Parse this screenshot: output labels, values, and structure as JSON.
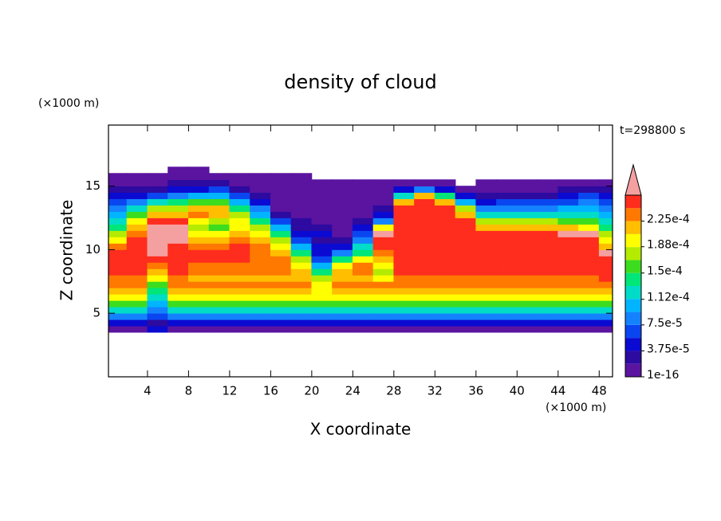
{
  "chart_data": {
    "type": "contour",
    "title": "density of cloud",
    "x_label": "X coordinate",
    "y_label": "Z coordinate",
    "x_unit": "(×1000 m)",
    "y_unit": "(×1000 m)",
    "annotation": "t=298800 s",
    "xlim": [
      0.2,
      49.3
    ],
    "ylim": [
      0,
      19.8
    ],
    "xticks": [
      4,
      8,
      12,
      16,
      20,
      24,
      28,
      32,
      36,
      40,
      44,
      48
    ],
    "yticks": [
      5,
      10,
      15
    ],
    "levels": [
      1e-16,
      1.875e-05,
      3.75e-05,
      5.625e-05,
      7.5e-05,
      9.375e-05,
      0.0001125,
      0.00013125,
      0.00015,
      0.00016875,
      0.0001875,
      0.00020625,
      0.000225,
      0.00024375,
      0.0002625
    ],
    "colors": [
      "#5a14a0",
      "#2d0aa0",
      "#0a0ad2",
      "#0a46f0",
      "#1482ff",
      "#00b4ff",
      "#00dcc8",
      "#00e678",
      "#3cdc1e",
      "#b4eb00",
      "#ffff00",
      "#ffbe00",
      "#ff7800",
      "#ff2d1e"
    ],
    "extend_color": "#f5a0a0",
    "cbar_ticks": [
      {
        "value": 1e-16,
        "label": "1e-16"
      },
      {
        "value": 3.75e-05,
        "label": "3.75e-5"
      },
      {
        "value": 7.5e-05,
        "label": "7.5e-5"
      },
      {
        "value": 0.000112,
        "label": "1.12e-4"
      },
      {
        "value": 0.00015,
        "label": "1.5e-4"
      },
      {
        "value": 0.000188,
        "label": "1.88e-4"
      },
      {
        "value": 0.000225,
        "label": "2.25e-4"
      }
    ],
    "x": [
      1,
      3,
      5,
      7,
      9,
      11,
      13,
      15,
      17,
      19,
      21,
      23,
      25,
      27,
      29,
      31,
      33,
      35,
      37,
      39,
      41,
      43,
      45,
      47,
      49
    ],
    "y": [
      3.75,
      4.25,
      4.75,
      5.25,
      5.75,
      6.25,
      6.75,
      7.25,
      7.75,
      8.25,
      8.75,
      9.25,
      9.75,
      10.25,
      10.75,
      11.25,
      11.75,
      12.25,
      12.75,
      13.25,
      13.75,
      14.25,
      14.75,
      15.25,
      15.75,
      16.25
    ],
    "z": [
      [
        1e-05,
        4.7e-05,
        8.4e-05,
        0.000122,
        0.000159,
        0.000197,
        0.000216,
        0.000234,
        0.000234,
        0.000253,
        0.000253,
        0.000253,
        0.000253,
        0.000234,
        0.000197,
        0.000178,
        0.00014,
        0.000122,
        0.000103,
        8.4e-05,
        6.5e-05,
        4.7e-05,
        2.8e-05,
        1e-05,
        1e-05,
        null
      ],
      [
        1e-05,
        4.7e-05,
        8.4e-05,
        0.000122,
        0.000159,
        0.000197,
        0.000216,
        0.000234,
        0.000234,
        0.000253,
        0.000253,
        0.000253,
        0.000253,
        0.000253,
        0.000253,
        0.000234,
        0.000216,
        0.000197,
        0.000159,
        0.000122,
        8.4e-05,
        4.7e-05,
        2.8e-05,
        1e-05,
        1e-05,
        null
      ],
      [
        4.7e-05,
        2.8e-05,
        6.5e-05,
        8.4e-05,
        0.000103,
        0.000122,
        0.00014,
        0.000159,
        0.000197,
        0.000216,
        0.000234,
        0.000253,
        0.00028,
        0.00028,
        0.00028,
        0.00028,
        0.00028,
        0.000253,
        0.000216,
        0.000178,
        0.000122,
        6.5e-05,
        2.8e-05,
        1e-05,
        1e-05,
        null
      ],
      [
        1e-05,
        4.7e-05,
        8.4e-05,
        0.000122,
        0.000159,
        0.000197,
        0.000216,
        0.000234,
        0.000234,
        0.000253,
        0.000253,
        0.000253,
        0.000253,
        0.000253,
        0.00028,
        0.00028,
        0.00028,
        0.000253,
        0.000216,
        0.000178,
        0.00014,
        8.4e-05,
        4.7e-05,
        2.8e-05,
        1e-05,
        1e-05
      ],
      [
        1e-05,
        4.7e-05,
        8.4e-05,
        0.000122,
        0.000159,
        0.000197,
        0.000216,
        0.000234,
        0.000216,
        0.000234,
        0.000234,
        0.000253,
        0.000253,
        0.000234,
        0.000216,
        0.000197,
        0.000178,
        0.000197,
        0.000234,
        0.000216,
        0.000159,
        0.000103,
        4.7e-05,
        2.8e-05,
        1e-05,
        1e-05
      ],
      [
        1e-05,
        4.7e-05,
        8.4e-05,
        0.000122,
        0.000159,
        0.000197,
        0.000216,
        0.000234,
        0.000216,
        0.000234,
        0.000234,
        0.000253,
        0.000253,
        0.000234,
        0.000216,
        0.000197,
        0.000159,
        0.000178,
        0.000216,
        0.000216,
        0.000159,
        0.000103,
        6.5e-05,
        2.8e-05,
        1e-05,
        null
      ],
      [
        1e-05,
        4.7e-05,
        8.4e-05,
        0.000122,
        0.000159,
        0.000197,
        0.000216,
        0.000234,
        0.000216,
        0.000234,
        0.000234,
        0.000253,
        0.000253,
        0.000253,
        0.000234,
        0.000216,
        0.000197,
        0.000197,
        0.000178,
        0.00014,
        0.000103,
        6.5e-05,
        2.8e-05,
        1e-05,
        1e-05,
        null
      ],
      [
        1e-05,
        4.7e-05,
        8.4e-05,
        0.000122,
        0.000159,
        0.000197,
        0.000216,
        0.000234,
        0.000216,
        0.000234,
        0.000234,
        0.000234,
        0.000234,
        0.000234,
        0.000216,
        0.000197,
        0.000178,
        0.00014,
        0.000103,
        8.4e-05,
        4.7e-05,
        2.8e-05,
        1e-05,
        1e-05,
        1e-05,
        null
      ],
      [
        1e-05,
        4.7e-05,
        8.4e-05,
        0.000122,
        0.000159,
        0.000197,
        0.000216,
        0.000234,
        0.000216,
        0.000234,
        0.000234,
        0.000234,
        0.000216,
        0.000197,
        0.000178,
        0.00014,
        0.000103,
        6.5e-05,
        2.8e-05,
        1e-05,
        1e-05,
        1e-05,
        1e-05,
        1e-05,
        1e-05,
        null
      ],
      [
        1e-05,
        4.7e-05,
        8.4e-05,
        0.000122,
        0.000159,
        0.000197,
        0.000216,
        0.000234,
        0.000216,
        0.000216,
        0.000197,
        0.000178,
        0.00014,
        0.000103,
        6.5e-05,
        4.7e-05,
        2.8e-05,
        2.8e-05,
        1e-05,
        1e-05,
        1e-05,
        1e-05,
        1e-05,
        1e-05,
        1e-05,
        null
      ],
      [
        1e-05,
        4.7e-05,
        8.4e-05,
        0.000122,
        0.000159,
        0.000197,
        0.000197,
        0.000197,
        0.000178,
        0.00014,
        0.000103,
        6.5e-05,
        4.7e-05,
        4.7e-05,
        2.8e-05,
        4.7e-05,
        2.8e-05,
        1e-05,
        1e-05,
        1e-05,
        1e-05,
        1e-05,
        1e-05,
        1e-05,
        null,
        null
      ],
      [
        1e-05,
        4.7e-05,
        8.4e-05,
        0.000122,
        0.000159,
        0.000197,
        0.000216,
        0.000234,
        0.000216,
        0.000216,
        0.000197,
        0.00014,
        8.4e-05,
        4.7e-05,
        2.8e-05,
        1e-05,
        1e-05,
        1e-05,
        1e-05,
        1e-05,
        1e-05,
        1e-05,
        1e-05,
        1e-05,
        null,
        null
      ],
      [
        1e-05,
        4.7e-05,
        8.4e-05,
        0.000122,
        0.000159,
        0.000197,
        0.000216,
        0.000234,
        0.000216,
        0.000234,
        0.000234,
        0.000197,
        0.00014,
        0.000122,
        8.4e-05,
        6.5e-05,
        4.7e-05,
        2.8e-05,
        1e-05,
        1e-05,
        1e-05,
        1e-05,
        1e-05,
        1e-05,
        null,
        null
      ],
      [
        1e-05,
        4.7e-05,
        8.4e-05,
        0.000122,
        0.000159,
        0.000197,
        0.000216,
        0.000234,
        0.000197,
        0.000178,
        0.000197,
        0.000216,
        0.000234,
        0.000253,
        0.000253,
        0.00028,
        0.000197,
        8.4e-05,
        4.7e-05,
        2.8e-05,
        1e-05,
        1e-05,
        1e-05,
        1e-05,
        null,
        null
      ],
      [
        1e-05,
        4.7e-05,
        8.4e-05,
        0.000122,
        0.000159,
        0.000197,
        0.000216,
        0.000234,
        0.000234,
        0.000253,
        0.000253,
        0.000253,
        0.000253,
        0.000253,
        0.000253,
        0.000253,
        0.000253,
        0.000253,
        0.000253,
        0.000253,
        0.000216,
        0.000122,
        4.7e-05,
        1e-05,
        null,
        null
      ],
      [
        1e-05,
        4.7e-05,
        8.4e-05,
        0.000122,
        0.000159,
        0.000197,
        0.000216,
        0.000234,
        0.000234,
        0.000253,
        0.000253,
        0.000253,
        0.000253,
        0.000253,
        0.000253,
        0.000253,
        0.000253,
        0.000253,
        0.000253,
        0.000253,
        0.000253,
        0.000216,
        8.4e-05,
        1e-05,
        null,
        null
      ],
      [
        1e-05,
        4.7e-05,
        8.4e-05,
        0.000122,
        0.000159,
        0.000197,
        0.000216,
        0.000234,
        0.000234,
        0.000253,
        0.000253,
        0.000253,
        0.000253,
        0.000253,
        0.000253,
        0.000253,
        0.000253,
        0.000253,
        0.000253,
        0.000253,
        0.000216,
        0.00014,
        4.7e-05,
        1e-05,
        null,
        null
      ],
      [
        1e-05,
        4.7e-05,
        8.4e-05,
        0.000122,
        0.000159,
        0.000197,
        0.000216,
        0.000234,
        0.000234,
        0.000253,
        0.000253,
        0.000253,
        0.000253,
        0.000253,
        0.000253,
        0.000253,
        0.000253,
        0.000253,
        0.000216,
        0.000178,
        0.000103,
        4.7e-05,
        1e-05,
        null,
        null,
        null
      ],
      [
        1e-05,
        4.7e-05,
        8.4e-05,
        0.000122,
        0.000159,
        0.000197,
        0.000216,
        0.000234,
        0.000234,
        0.000253,
        0.000253,
        0.000253,
        0.000253,
        0.000253,
        0.000253,
        0.000253,
        0.000216,
        0.000178,
        0.000122,
        8.4e-05,
        4.7e-05,
        2.8e-05,
        1e-05,
        1e-05,
        null,
        null
      ],
      [
        1e-05,
        4.7e-05,
        8.4e-05,
        0.000122,
        0.000159,
        0.000197,
        0.000216,
        0.000234,
        0.000234,
        0.000253,
        0.000253,
        0.000253,
        0.000253,
        0.000253,
        0.000253,
        0.000253,
        0.000216,
        0.000178,
        0.000122,
        8.4e-05,
        6.5e-05,
        2.8e-05,
        1e-05,
        1e-05,
        null,
        null
      ],
      [
        1e-05,
        4.7e-05,
        8.4e-05,
        0.000122,
        0.000159,
        0.000197,
        0.000216,
        0.000234,
        0.000234,
        0.000253,
        0.000253,
        0.000253,
        0.000253,
        0.000253,
        0.000253,
        0.000253,
        0.000216,
        0.000178,
        0.000122,
        8.4e-05,
        6.5e-05,
        2.8e-05,
        1e-05,
        1e-05,
        null,
        null
      ],
      [
        1e-05,
        4.7e-05,
        8.4e-05,
        0.000122,
        0.000159,
        0.000197,
        0.000216,
        0.000234,
        0.000234,
        0.000253,
        0.000253,
        0.000253,
        0.000253,
        0.000253,
        0.000253,
        0.000253,
        0.000216,
        0.000178,
        0.000122,
        8.4e-05,
        6.5e-05,
        2.8e-05,
        1e-05,
        1e-05,
        null,
        null
      ],
      [
        1e-05,
        4.7e-05,
        8.4e-05,
        0.000122,
        0.000159,
        0.000197,
        0.000216,
        0.000234,
        0.000234,
        0.000253,
        0.000253,
        0.000253,
        0.000253,
        0.000253,
        0.000253,
        0.00028,
        0.000216,
        0.000159,
        0.000122,
        0.000103,
        6.5e-05,
        4.7e-05,
        2.8e-05,
        1e-05,
        null,
        null
      ],
      [
        1e-05,
        4.7e-05,
        8.4e-05,
        0.000122,
        0.000159,
        0.000197,
        0.000216,
        0.000234,
        0.000234,
        0.000253,
        0.000253,
        0.000253,
        0.000253,
        0.000253,
        0.000253,
        0.00028,
        0.000197,
        0.000159,
        0.000122,
        0.000103,
        8.4e-05,
        6.5e-05,
        2.8e-05,
        1e-05,
        null,
        null
      ],
      [
        1e-05,
        4.7e-05,
        8.4e-05,
        0.000122,
        0.000159,
        0.000197,
        0.000216,
        0.000234,
        0.000253,
        0.000253,
        0.000253,
        0.000253,
        0.00028,
        0.000216,
        0.000197,
        0.000178,
        0.00014,
        0.000122,
        0.000103,
        8.4e-05,
        6.5e-05,
        4.7e-05,
        2.8e-05,
        1e-05,
        null,
        null
      ]
    ]
  }
}
